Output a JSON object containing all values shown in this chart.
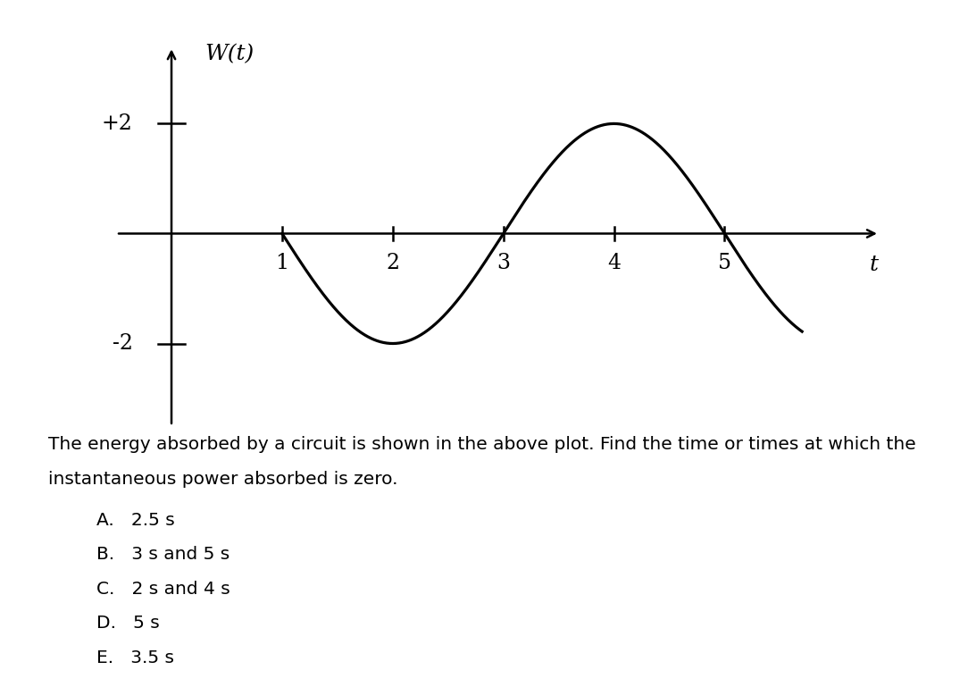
{
  "ylabel_text": "W(t)",
  "xlabel_text": "t",
  "ytick_vals": [
    -2,
    2
  ],
  "ytick_labels": [
    "-2",
    "+2"
  ],
  "xtick_vals": [
    1,
    2,
    3,
    4,
    5
  ],
  "xlim": [
    -0.5,
    6.5
  ],
  "ylim": [
    -3.5,
    3.5
  ],
  "curve_color": "#000000",
  "curve_linewidth": 2.3,
  "axis_linewidth": 1.8,
  "curve_t_start": 1.0,
  "curve_t_end": 5.7,
  "curve_amplitude": 2.0,
  "curve_period": 4.0,
  "curve_phase_zero": 1.0,
  "text_fontsize": 14.5,
  "choice_fontsize": 14.5,
  "question_line1": "The energy absorbed by a circuit is shown in the above plot. Find the time or times at which the",
  "question_line2": "instantaneous power absorbed is zero.",
  "choices": [
    "A.   2.5 s",
    "B.   3 s and 5 s",
    "C.   2 s and 4 s",
    "D.   5 s",
    "E.   3.5 s"
  ]
}
